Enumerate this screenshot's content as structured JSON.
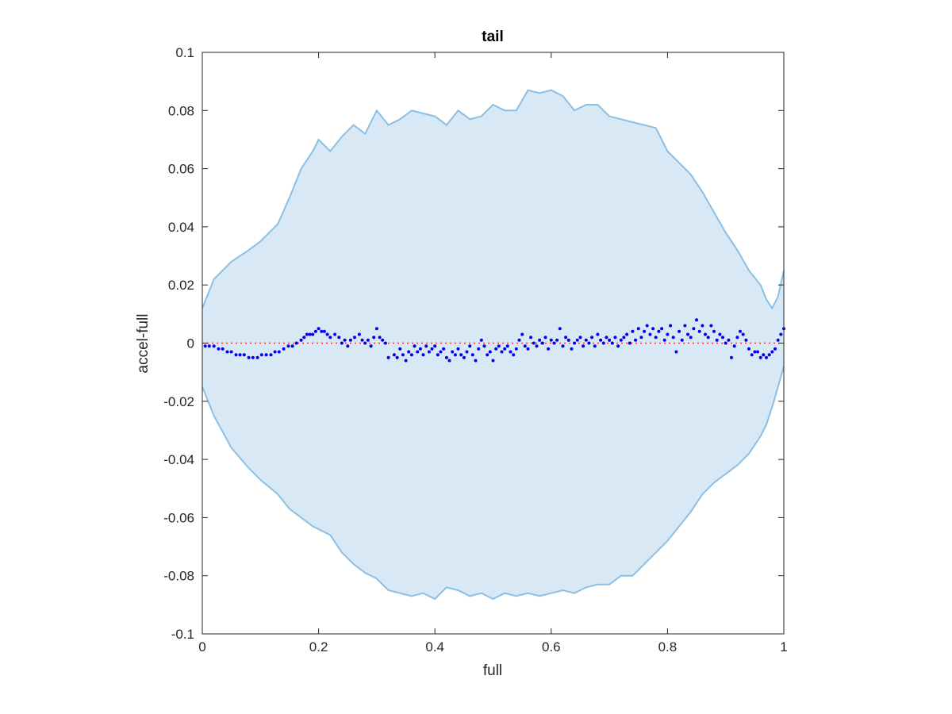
{
  "chart_data": {
    "type": "scatter",
    "title": "tail",
    "xlabel": "full",
    "ylabel": "accel-full",
    "xlim": [
      0,
      1
    ],
    "ylim": [
      -0.1,
      0.1
    ],
    "x_ticks": [
      0,
      0.2,
      0.4,
      0.6,
      0.8,
      1
    ],
    "x_tick_labels": [
      "0",
      "0.2",
      "0.4",
      "0.6",
      "0.8",
      "1"
    ],
    "y_ticks": [
      -0.1,
      -0.08,
      -0.06,
      -0.04,
      -0.02,
      0,
      0.02,
      0.04,
      0.06,
      0.08,
      0.1
    ],
    "y_tick_labels": [
      "-0.1",
      "-0.08",
      "-0.06",
      "-0.04",
      "-0.02",
      "0",
      "0.02",
      "0.04",
      "0.06",
      "0.08",
      "0.1"
    ],
    "grid": false,
    "band": {
      "x": [
        0,
        0.02,
        0.05,
        0.08,
        0.1,
        0.13,
        0.15,
        0.17,
        0.19,
        0.2,
        0.22,
        0.24,
        0.26,
        0.28,
        0.3,
        0.32,
        0.34,
        0.36,
        0.38,
        0.4,
        0.42,
        0.44,
        0.46,
        0.48,
        0.5,
        0.52,
        0.54,
        0.56,
        0.58,
        0.6,
        0.62,
        0.64,
        0.66,
        0.68,
        0.7,
        0.72,
        0.74,
        0.76,
        0.78,
        0.79,
        0.8,
        0.82,
        0.84,
        0.86,
        0.88,
        0.9,
        0.92,
        0.94,
        0.96,
        0.97,
        0.98,
        0.99,
        1.0
      ],
      "upper": [
        0.012,
        0.022,
        0.028,
        0.032,
        0.035,
        0.041,
        0.05,
        0.06,
        0.066,
        0.07,
        0.066,
        0.071,
        0.075,
        0.072,
        0.08,
        0.075,
        0.077,
        0.08,
        0.079,
        0.078,
        0.075,
        0.08,
        0.077,
        0.078,
        0.082,
        0.08,
        0.08,
        0.087,
        0.086,
        0.087,
        0.085,
        0.08,
        0.082,
        0.082,
        0.078,
        0.077,
        0.076,
        0.075,
        0.074,
        0.07,
        0.066,
        0.062,
        0.058,
        0.052,
        0.045,
        0.038,
        0.032,
        0.025,
        0.02,
        0.015,
        0.012,
        0.016,
        0.025
      ],
      "lower": [
        -0.015,
        -0.025,
        -0.036,
        -0.043,
        -0.047,
        -0.052,
        -0.057,
        -0.06,
        -0.063,
        -0.064,
        -0.066,
        -0.072,
        -0.076,
        -0.079,
        -0.081,
        -0.085,
        -0.086,
        -0.087,
        -0.086,
        -0.088,
        -0.084,
        -0.085,
        -0.087,
        -0.086,
        -0.088,
        -0.086,
        -0.087,
        -0.086,
        -0.087,
        -0.086,
        -0.085,
        -0.086,
        -0.084,
        -0.083,
        -0.083,
        -0.08,
        -0.08,
        -0.076,
        -0.072,
        -0.07,
        -0.068,
        -0.063,
        -0.058,
        -0.052,
        -0.048,
        -0.045,
        -0.042,
        -0.038,
        -0.032,
        -0.028,
        -0.022,
        -0.015,
        -0.008
      ]
    },
    "reference_line": {
      "y": 0,
      "color": "#ff3030"
    },
    "series": [
      {
        "color": "#0000ee",
        "x": [
          0.005,
          0.012,
          0.02,
          0.028,
          0.035,
          0.043,
          0.05,
          0.058,
          0.065,
          0.072,
          0.08,
          0.087,
          0.095,
          0.102,
          0.11,
          0.118,
          0.125,
          0.132,
          0.14,
          0.148,
          0.155,
          0.162,
          0.17,
          0.175,
          0.18,
          0.185,
          0.19,
          0.195,
          0.2,
          0.205,
          0.21,
          0.215,
          0.22,
          0.228,
          0.235,
          0.24,
          0.245,
          0.25,
          0.255,
          0.262,
          0.27,
          0.275,
          0.28,
          0.285,
          0.29,
          0.295,
          0.3,
          0.305,
          0.31,
          0.315,
          0.32,
          0.33,
          0.335,
          0.34,
          0.345,
          0.35,
          0.355,
          0.36,
          0.365,
          0.37,
          0.375,
          0.38,
          0.385,
          0.39,
          0.395,
          0.4,
          0.405,
          0.41,
          0.415,
          0.42,
          0.425,
          0.43,
          0.435,
          0.44,
          0.445,
          0.45,
          0.455,
          0.46,
          0.465,
          0.47,
          0.475,
          0.48,
          0.485,
          0.49,
          0.495,
          0.5,
          0.505,
          0.51,
          0.515,
          0.52,
          0.525,
          0.53,
          0.535,
          0.54,
          0.545,
          0.55,
          0.555,
          0.56,
          0.565,
          0.57,
          0.575,
          0.58,
          0.585,
          0.59,
          0.595,
          0.6,
          0.605,
          0.61,
          0.615,
          0.62,
          0.625,
          0.63,
          0.635,
          0.64,
          0.645,
          0.65,
          0.655,
          0.66,
          0.665,
          0.67,
          0.675,
          0.68,
          0.685,
          0.69,
          0.695,
          0.7,
          0.705,
          0.71,
          0.715,
          0.72,
          0.725,
          0.73,
          0.735,
          0.74,
          0.745,
          0.75,
          0.755,
          0.76,
          0.765,
          0.77,
          0.775,
          0.78,
          0.785,
          0.79,
          0.795,
          0.8,
          0.805,
          0.81,
          0.815,
          0.82,
          0.825,
          0.83,
          0.835,
          0.84,
          0.845,
          0.85,
          0.855,
          0.86,
          0.865,
          0.87,
          0.875,
          0.88,
          0.885,
          0.89,
          0.895,
          0.9,
          0.905,
          0.91,
          0.915,
          0.92,
          0.925,
          0.93,
          0.935,
          0.94,
          0.945,
          0.95,
          0.955,
          0.96,
          0.965,
          0.97,
          0.975,
          0.98,
          0.985,
          0.99,
          0.995,
          1.0
        ],
        "y": [
          -0.001,
          -0.001,
          -0.001,
          -0.002,
          -0.002,
          -0.003,
          -0.003,
          -0.004,
          -0.004,
          -0.004,
          -0.005,
          -0.005,
          -0.005,
          -0.004,
          -0.004,
          -0.004,
          -0.003,
          -0.003,
          -0.002,
          -0.001,
          -0.001,
          0.0,
          0.001,
          0.002,
          0.003,
          0.003,
          0.003,
          0.004,
          0.005,
          0.004,
          0.004,
          0.003,
          0.002,
          0.003,
          0.002,
          0.0,
          0.001,
          -0.001,
          0.001,
          0.002,
          0.003,
          0.001,
          0.0,
          0.001,
          -0.001,
          0.002,
          0.005,
          0.002,
          0.001,
          0.0,
          -0.005,
          -0.004,
          -0.005,
          -0.002,
          -0.004,
          -0.006,
          -0.003,
          -0.004,
          -0.001,
          -0.003,
          -0.002,
          -0.004,
          -0.001,
          -0.003,
          -0.002,
          -0.001,
          -0.004,
          -0.003,
          -0.002,
          -0.005,
          -0.006,
          -0.003,
          -0.004,
          -0.002,
          -0.004,
          -0.005,
          -0.003,
          -0.001,
          -0.004,
          -0.006,
          -0.002,
          0.001,
          -0.001,
          -0.004,
          -0.003,
          -0.006,
          -0.002,
          -0.001,
          -0.003,
          -0.002,
          -0.001,
          -0.003,
          -0.004,
          -0.002,
          0.001,
          0.003,
          -0.001,
          -0.002,
          0.002,
          0.0,
          -0.001,
          0.001,
          0.0,
          0.002,
          -0.002,
          0.001,
          0.0,
          0.001,
          0.005,
          -0.001,
          0.002,
          0.001,
          -0.002,
          0.0,
          0.001,
          0.002,
          -0.001,
          0.001,
          0.0,
          0.002,
          -0.001,
          0.003,
          0.001,
          0.0,
          0.002,
          0.001,
          0.0,
          0.002,
          -0.001,
          0.001,
          0.002,
          0.003,
          0.0,
          0.004,
          0.001,
          0.005,
          0.002,
          0.004,
          0.006,
          0.003,
          0.005,
          0.002,
          0.004,
          0.005,
          0.001,
          0.003,
          0.006,
          0.002,
          -0.003,
          0.004,
          0.001,
          0.006,
          0.003,
          0.002,
          0.005,
          0.008,
          0.004,
          0.006,
          0.003,
          0.002,
          0.006,
          0.004,
          0.001,
          0.003,
          0.002,
          0.0,
          0.001,
          -0.005,
          -0.001,
          0.002,
          0.004,
          0.003,
          0.001,
          -0.002,
          -0.004,
          -0.003,
          -0.003,
          -0.005,
          -0.004,
          -0.005,
          -0.004,
          -0.003,
          -0.002,
          0.001,
          0.003,
          0.005
        ]
      }
    ]
  }
}
